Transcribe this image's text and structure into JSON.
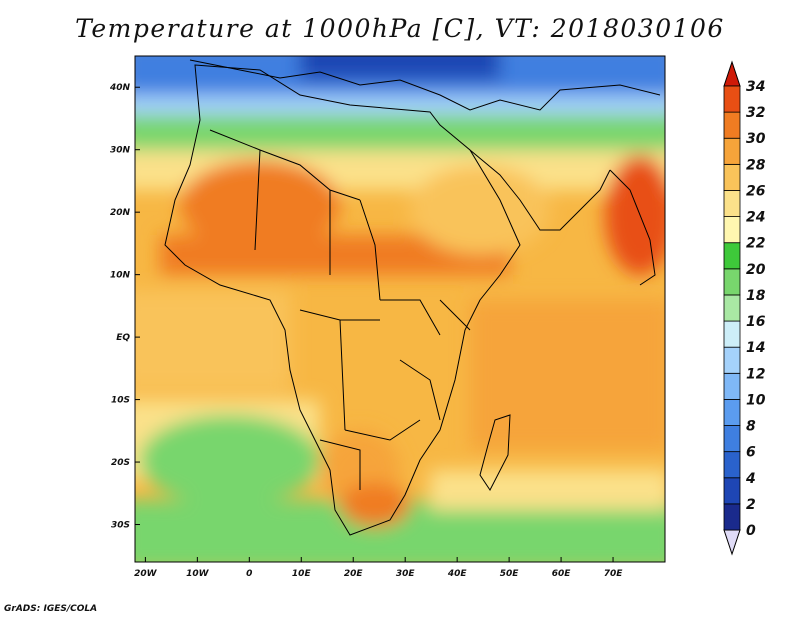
{
  "title": "Temperature at 1000hPa [C], VT: 2018030106",
  "credit": "GrADS: IGES/COLA",
  "map": {
    "lon_range": [
      -22,
      80
    ],
    "lat_range": [
      -36,
      45
    ],
    "lon_ticks": [
      {
        "value": -20,
        "label": "20W"
      },
      {
        "value": -10,
        "label": "10W"
      },
      {
        "value": 0,
        "label": "0"
      },
      {
        "value": 10,
        "label": "10E"
      },
      {
        "value": 20,
        "label": "20E"
      },
      {
        "value": 30,
        "label": "30E"
      },
      {
        "value": 40,
        "label": "40E"
      },
      {
        "value": 50,
        "label": "50E"
      },
      {
        "value": 60,
        "label": "60E"
      },
      {
        "value": 70,
        "label": "70E"
      }
    ],
    "lat_ticks": [
      {
        "value": 40,
        "label": "40N"
      },
      {
        "value": 30,
        "label": "30N"
      },
      {
        "value": 20,
        "label": "20N"
      },
      {
        "value": 10,
        "label": "10N"
      },
      {
        "value": 0,
        "label": "EQ"
      },
      {
        "value": -10,
        "label": "10S"
      },
      {
        "value": -20,
        "label": "20S"
      },
      {
        "value": -30,
        "label": "30S"
      }
    ]
  },
  "colorbar": {
    "levels": [
      "0",
      "2",
      "4",
      "6",
      "8",
      "10",
      "12",
      "14",
      "16",
      "18",
      "20",
      "22",
      "24",
      "26",
      "28",
      "30",
      "32",
      "34"
    ],
    "colors": [
      "#1a2a8c",
      "#1e46b4",
      "#2a62cc",
      "#3f7fe0",
      "#5b9cef",
      "#7fb8f7",
      "#a5d2fb",
      "#cdeef8",
      "#a9e8a4",
      "#78d66d",
      "#3ec93a",
      "#fff7b0",
      "#fbe18a",
      "#f9c35a",
      "#f6a43a",
      "#f07c22",
      "#e84f14",
      "#d91f0a"
    ],
    "under_color": "#e0dcf7",
    "over_color": "#cf1a08"
  }
}
